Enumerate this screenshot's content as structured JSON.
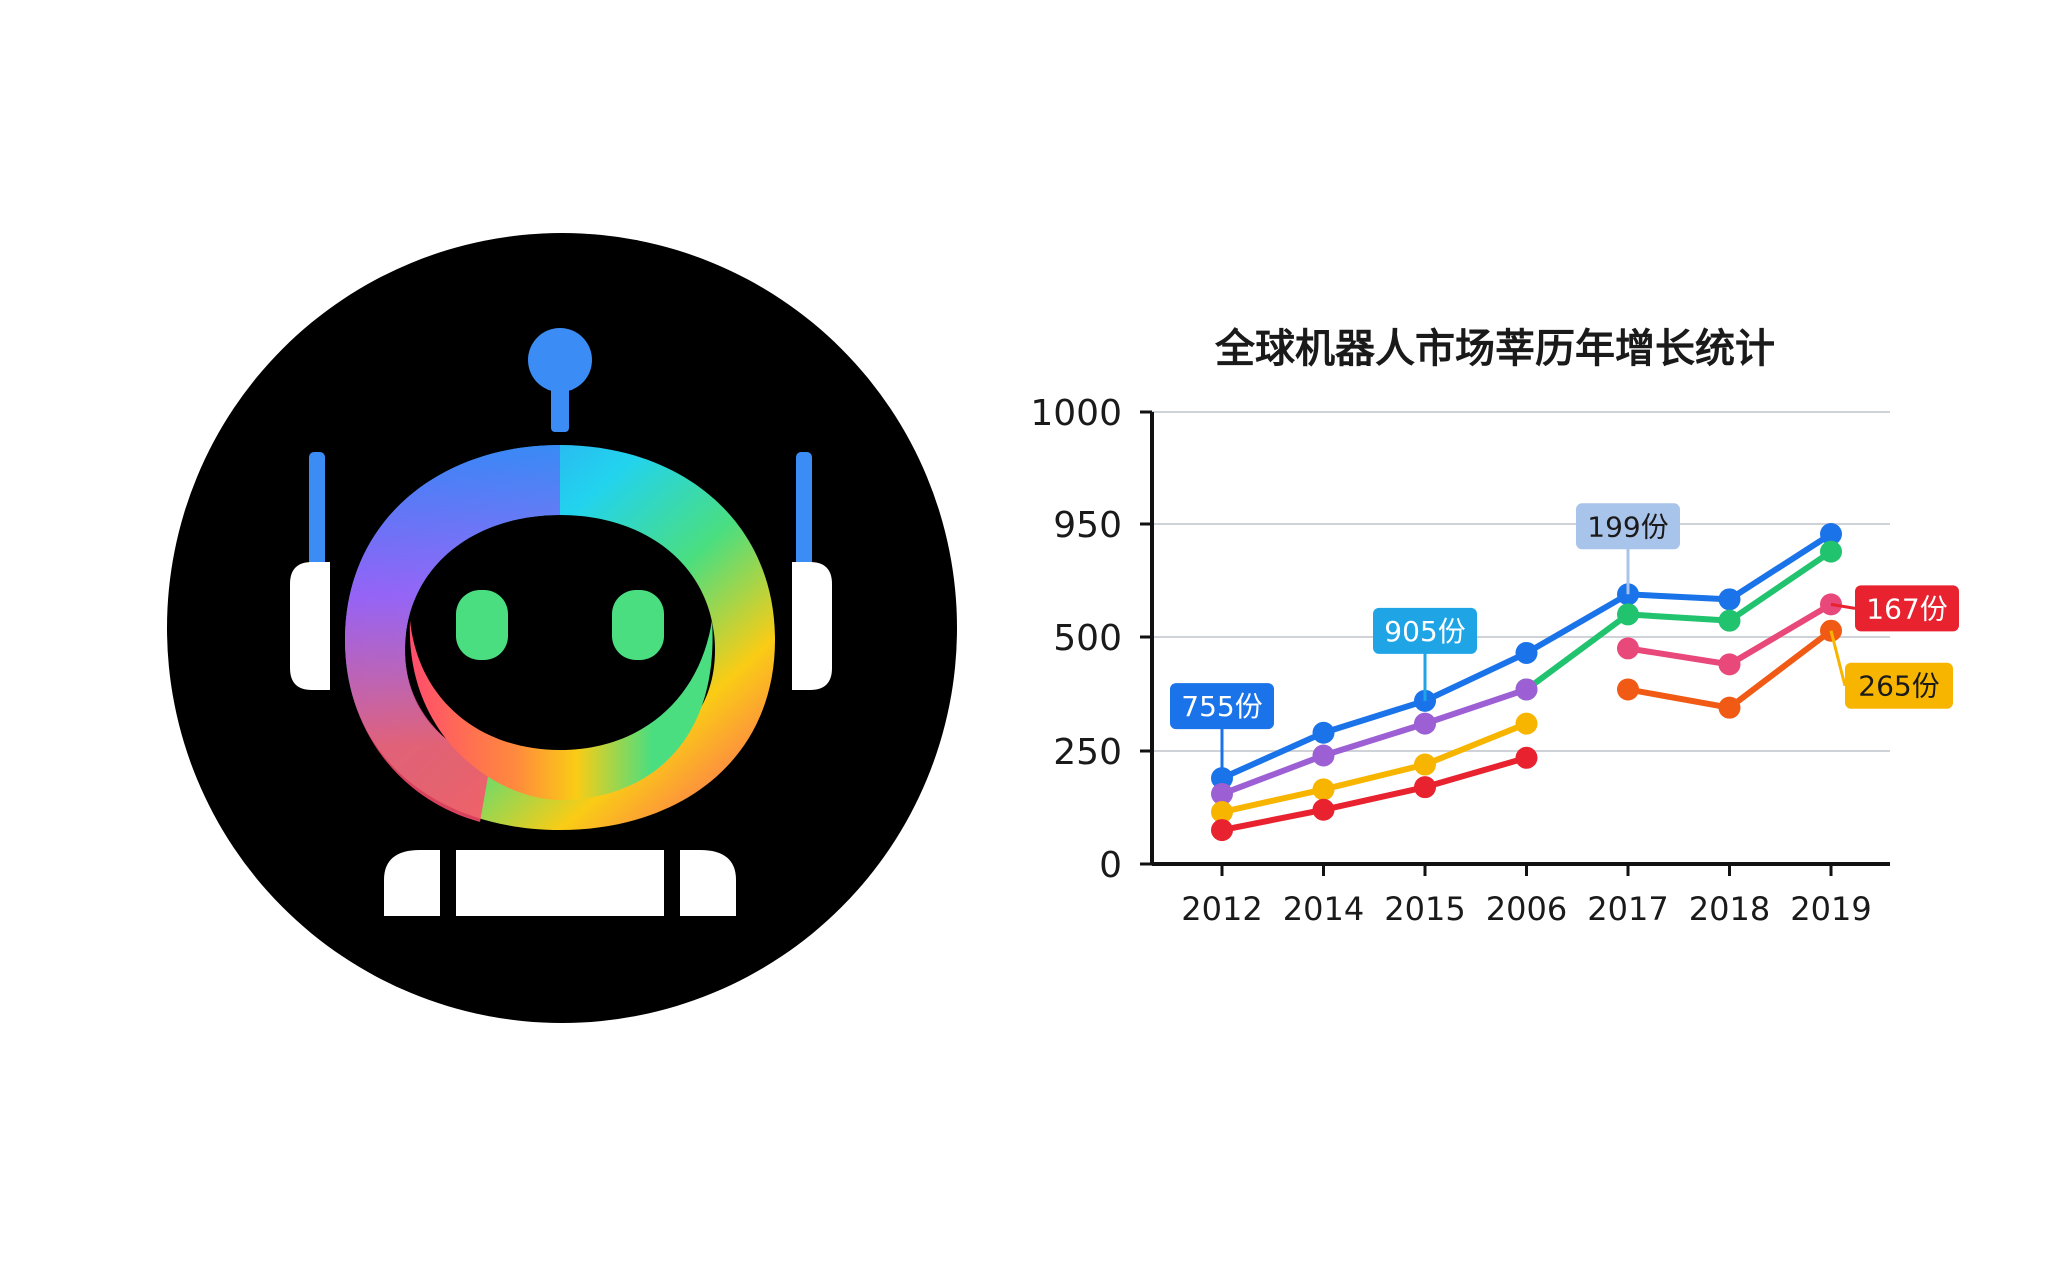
{
  "logo": {
    "icon": "robot-head-icon",
    "background_color": "#000000",
    "gradient_colors": [
      "#3b82f6",
      "#22d3ee",
      "#4ade80",
      "#facc15",
      "#ff4d6d",
      "#a855f7"
    ],
    "eye_color": "#4ade80"
  },
  "chart_data": {
    "type": "line",
    "title": "全球机器人市场莘历年增长统计",
    "xlabel": "",
    "ylabel": "",
    "categories": [
      "2012",
      "2014",
      "2015",
      "2006",
      "2017",
      "2018",
      "2019"
    ],
    "y_ticks": [
      "0",
      "250",
      "500",
      "950",
      "1000"
    ],
    "ylim": [
      0,
      1000
    ],
    "grid": true,
    "series": [
      {
        "color": "#1a73e8",
        "values": [
          190,
          290,
          360,
          465,
          670,
          650,
          910
        ]
      },
      {
        "color": "#21c36f",
        "values": null,
        "values_partial": [
          null,
          null,
          null,
          385,
          590,
          565,
          840
        ]
      },
      {
        "color": "#9c5fd4",
        "values": [
          155,
          240,
          310,
          385,
          null,
          null,
          null
        ]
      },
      {
        "color": "#e8487a",
        "values": [
          null,
          null,
          null,
          null,
          475,
          440,
          630
        ]
      },
      {
        "color": "#f7b500",
        "values": [
          115,
          165,
          220,
          310,
          null,
          null,
          null
        ]
      },
      {
        "color": "#f05a14",
        "values": [
          null,
          null,
          null,
          null,
          385,
          345,
          525
        ]
      },
      {
        "color": "#e8222e",
        "values": [
          75,
          120,
          170,
          235,
          null,
          null,
          null
        ]
      }
    ],
    "annotations": [
      {
        "text": "755份",
        "category": "2012",
        "value": 190,
        "color": "#1a73e8",
        "text_color": "#ffffff"
      },
      {
        "text": "905份",
        "category": "2015",
        "value": 360,
        "color": "#1fa4e6",
        "text_color": "#ffffff"
      },
      {
        "text": "199份",
        "category": "2017",
        "value": 670,
        "color": "#a9c4ea",
        "text_color": "#1a1a1a"
      },
      {
        "text": "167份",
        "category": "2019",
        "value": 630,
        "color": "#e8222e",
        "text_color": "#ffffff"
      },
      {
        "text": "265份",
        "category": "2019",
        "value": 525,
        "color": "#f7b500",
        "text_color": "#1a1a1a"
      }
    ]
  }
}
